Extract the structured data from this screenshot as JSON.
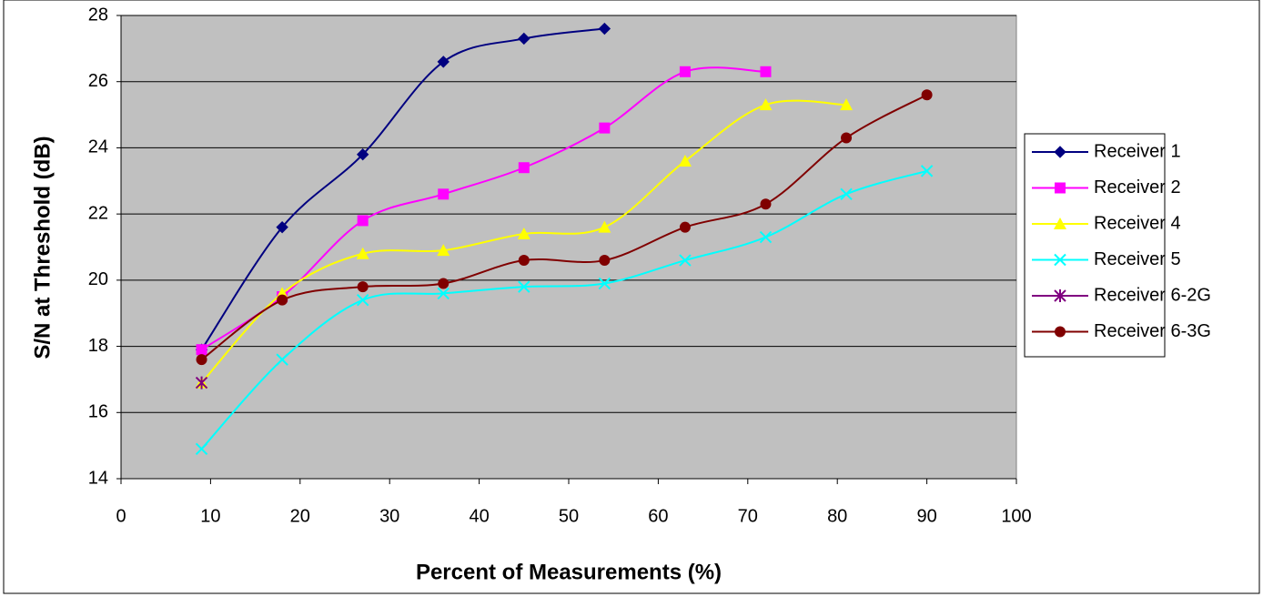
{
  "chart_data": {
    "type": "line",
    "x_label": "Percent of Measurements (%)",
    "y_label": "S/N at Threshold (dB)",
    "xlim": [
      0,
      100
    ],
    "xticks": [
      0,
      10,
      20,
      30,
      40,
      50,
      60,
      70,
      80,
      90,
      100
    ],
    "ylim": [
      14,
      28
    ],
    "yticks": [
      14,
      16,
      18,
      20,
      22,
      24,
      26,
      28
    ],
    "grid": true,
    "smooth": true,
    "legend": "right",
    "plot_background": "#c0c0c0",
    "series": [
      {
        "name": "Receiver 1",
        "color": "#000080",
        "marker": "diamond",
        "x": [
          9,
          18,
          27,
          36,
          45,
          54
        ],
        "values": [
          17.9,
          21.6,
          23.8,
          26.6,
          27.3,
          27.6
        ]
      },
      {
        "name": "Receiver 2",
        "color": "#ff00ff",
        "marker": "square",
        "x": [
          9,
          18,
          27,
          36,
          45,
          54,
          63,
          72
        ],
        "values": [
          17.9,
          19.5,
          21.8,
          22.6,
          23.4,
          24.6,
          26.3,
          26.3
        ]
      },
      {
        "name": "Receiver 4",
        "color": "#ffff00",
        "marker": "triangle",
        "x": [
          9,
          18,
          27,
          36,
          45,
          54,
          63,
          72,
          81
        ],
        "values": [
          16.9,
          19.6,
          20.8,
          20.9,
          21.4,
          21.6,
          23.6,
          25.3,
          25.3
        ]
      },
      {
        "name": "Receiver 5",
        "color": "#00ffff",
        "marker": "x",
        "x": [
          9,
          18,
          27,
          36,
          45,
          54,
          63,
          72,
          81,
          90
        ],
        "values": [
          14.9,
          17.6,
          19.4,
          19.6,
          19.8,
          19.9,
          20.6,
          21.3,
          22.6,
          23.3
        ]
      },
      {
        "name": "Receiver 6-2G",
        "color": "#800080",
        "marker": "star",
        "x": [
          9
        ],
        "values": [
          16.9
        ]
      },
      {
        "name": "Receiver 6-3G",
        "color": "#800000",
        "marker": "circle",
        "x": [
          9,
          18,
          27,
          36,
          45,
          54,
          63,
          72,
          81,
          90
        ],
        "values": [
          17.6,
          19.4,
          19.8,
          19.9,
          20.6,
          20.6,
          21.6,
          22.3,
          24.3,
          25.6
        ]
      }
    ]
  }
}
